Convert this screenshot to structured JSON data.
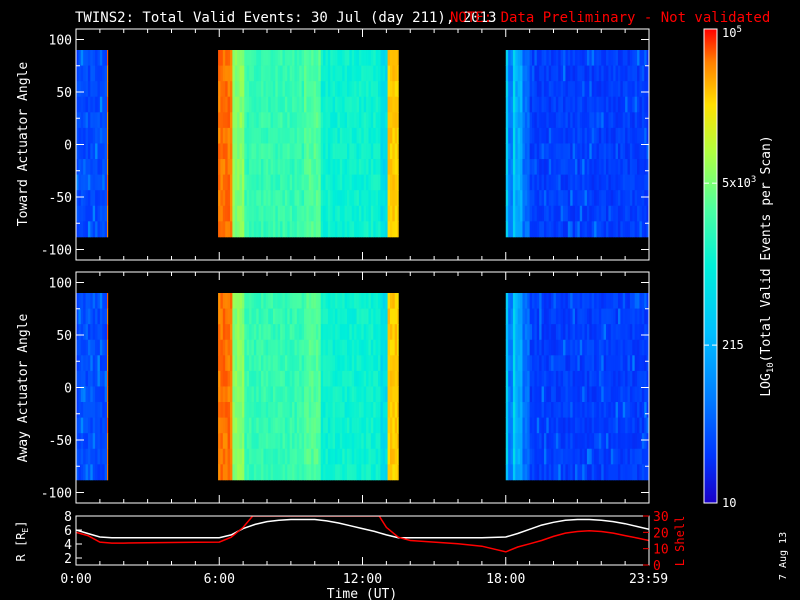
{
  "title": {
    "main": "TWINS2: Total Valid Events: 30 Jul (day 211), 2013",
    "note": "NOTE: Data Preliminary - Not validated"
  },
  "colors": {
    "background": "#000000",
    "axis": "#ffffff",
    "note": "#ff0000",
    "lshell": "#ff0000",
    "radius": "#ffffff"
  },
  "chart_data": [
    {
      "type": "heatmap",
      "panel": "toward",
      "ylabel": "Toward Actuator Angle",
      "ylim": [
        -110,
        110
      ],
      "yticks": [
        "100",
        "50",
        "0",
        "-50",
        "-100"
      ],
      "xlim": [
        0,
        24
      ],
      "angle_range": [
        -88,
        90
      ],
      "data_intervals": [
        {
          "start": 0.0,
          "end": 1.33,
          "level": "low"
        },
        {
          "start": 5.95,
          "end": 13.5,
          "level": "high"
        },
        {
          "start": 18.0,
          "end": 23.98,
          "level": "low"
        }
      ]
    },
    {
      "type": "heatmap",
      "panel": "away",
      "ylabel": "Away Actuator Angle",
      "ylim": [
        -110,
        110
      ],
      "yticks": [
        "100",
        "50",
        "0",
        "-50",
        "-100"
      ],
      "xlim": [
        0,
        24
      ],
      "angle_range": [
        -88,
        90
      ],
      "data_intervals": [
        {
          "start": 0.0,
          "end": 1.33,
          "level": "low"
        },
        {
          "start": 5.95,
          "end": 13.5,
          "level": "high"
        },
        {
          "start": 18.0,
          "end": 23.98,
          "level": "low"
        }
      ]
    },
    {
      "type": "line",
      "panel": "orbit",
      "xlabel": "Time (UT)",
      "xticks": [
        "0:00",
        "6:00",
        "12:00",
        "18:00",
        "23:59"
      ],
      "left_axis": {
        "label": "R [R",
        "label_sub": "E",
        "label_end": "]",
        "ticks": [
          "8",
          "6",
          "4",
          "2"
        ],
        "ylim": [
          1,
          8
        ]
      },
      "right_axis": {
        "label": "L Shell",
        "ticks": [
          "30",
          "20",
          "10",
          "0"
        ],
        "ylim": [
          0,
          30
        ]
      },
      "series": [
        {
          "name": "R",
          "axis": "left",
          "x": [
            0,
            0.5,
            1,
            1.5,
            2,
            3,
            4,
            5,
            6,
            6.5,
            7,
            7.5,
            8,
            8.5,
            9,
            9.5,
            10,
            10.5,
            11,
            11.5,
            12,
            12.5,
            13,
            13.5,
            14,
            15,
            16,
            17,
            18,
            18.5,
            19,
            19.5,
            20,
            20.5,
            21,
            21.5,
            22,
            22.5,
            23,
            23.5,
            24
          ],
          "y": [
            6.0,
            5.5,
            5.0,
            4.9,
            4.9,
            4.9,
            4.9,
            4.9,
            4.9,
            5.3,
            6.2,
            6.8,
            7.2,
            7.4,
            7.5,
            7.5,
            7.5,
            7.3,
            7.0,
            6.6,
            6.2,
            5.8,
            5.3,
            4.9,
            4.9,
            4.9,
            4.9,
            4.9,
            5.0,
            5.5,
            6.1,
            6.7,
            7.1,
            7.4,
            7.5,
            7.5,
            7.4,
            7.2,
            6.9,
            6.5,
            6.1
          ]
        },
        {
          "name": "L Shell",
          "axis": "right",
          "x": [
            0,
            0.5,
            1,
            1.5,
            2,
            3,
            4,
            5,
            6,
            6.5,
            7,
            7.4,
            12.7,
            13,
            13.5,
            14,
            15,
            16,
            17,
            18,
            18.5,
            19,
            19.5,
            20,
            20.5,
            21,
            21.5,
            22,
            22.5,
            23,
            23.5,
            24
          ],
          "y": [
            20,
            18,
            14,
            13.4,
            13.4,
            13.6,
            13.8,
            13.9,
            14,
            17,
            23,
            30,
            30,
            23,
            17,
            15,
            14,
            13,
            11.5,
            8,
            11,
            13,
            15,
            17.5,
            19.5,
            20.5,
            21,
            20.5,
            19.5,
            18,
            16.5,
            15
          ]
        }
      ]
    }
  ],
  "colorbar": {
    "label": "LOG",
    "label_sub": "10",
    "label_rest": "(Total Valid Events per Scan)",
    "tick_labels": [
      {
        "text": "10",
        "exp": "5",
        "value": 100000
      },
      {
        "text": "5x10",
        "exp": "3",
        "value": 5000
      },
      {
        "text": "215",
        "exp": "",
        "value": 215
      },
      {
        "text": "10",
        "exp": "",
        "value": 10
      }
    ],
    "range": [
      10,
      100000
    ],
    "stops": [
      "#1a00c8",
      "#0036ff",
      "#007cff",
      "#00c0ff",
      "#00f0d8",
      "#4cffa0",
      "#b0ff40",
      "#ffe000",
      "#ff8000",
      "#ff0000"
    ]
  },
  "side_text": "7 Aug 13"
}
